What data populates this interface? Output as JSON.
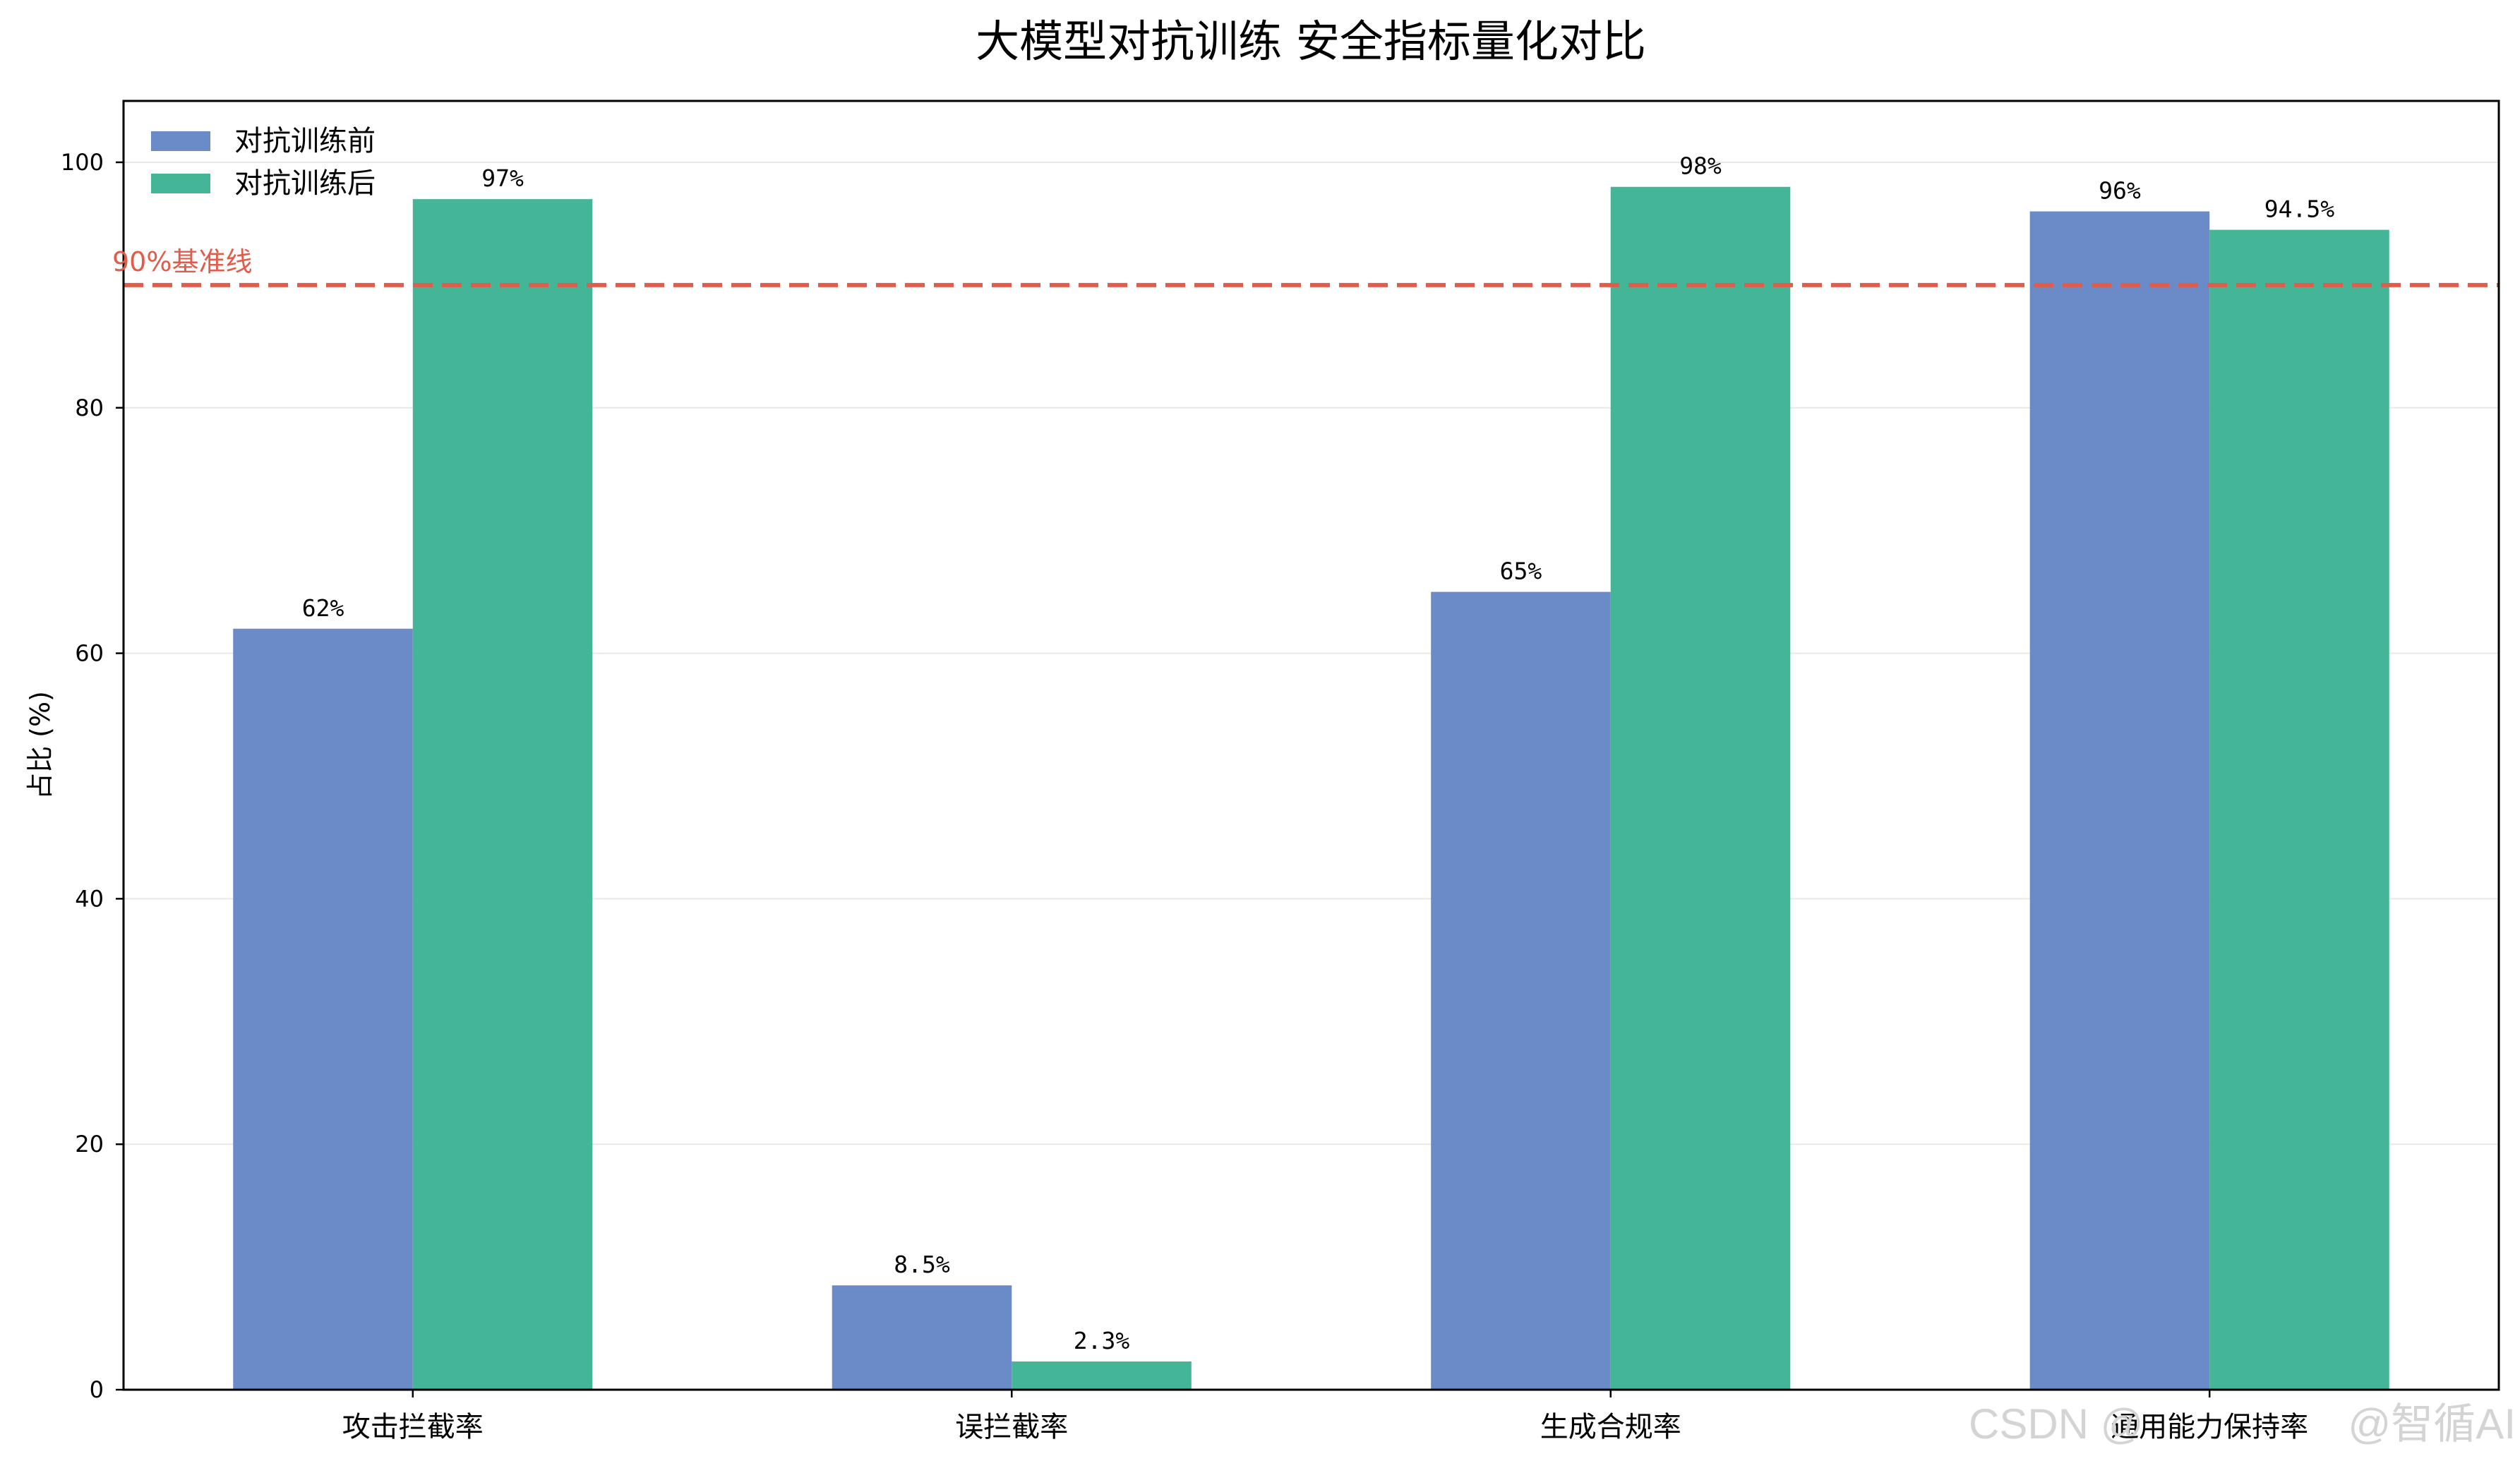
{
  "chart_data": {
    "type": "bar",
    "title": "大模型对抗训练 安全指标量化对比",
    "xlabel": "",
    "ylabel": "占比 (%)",
    "categories": [
      "攻击拦截率",
      "误拦截率",
      "生成合规率",
      "通用能力保持率"
    ],
    "series": [
      {
        "name": "对抗训练前",
        "values": [
          62,
          8.5,
          65,
          96
        ],
        "labels": [
          "62%",
          "8.5%",
          "65%",
          "96%"
        ],
        "color": "#6b8ac8"
      },
      {
        "name": "对抗训练后",
        "values": [
          97,
          2.3,
          98,
          94.5
        ],
        "labels": [
          "97%",
          "2.3%",
          "98%",
          "94.5%"
        ],
        "color": "#45b597"
      }
    ],
    "ylim": [
      0,
      105
    ],
    "yticks": [
      0,
      20,
      40,
      60,
      80,
      100
    ],
    "grid": true,
    "legend": "top-left",
    "reference_line": {
      "value": 90,
      "label": "90%基准线",
      "color": "#e05c4b",
      "style": "dashed"
    }
  },
  "watermark": {
    "left": "CSDN @",
    "right": "@智循AI",
    "color": "#d4d4d4"
  }
}
